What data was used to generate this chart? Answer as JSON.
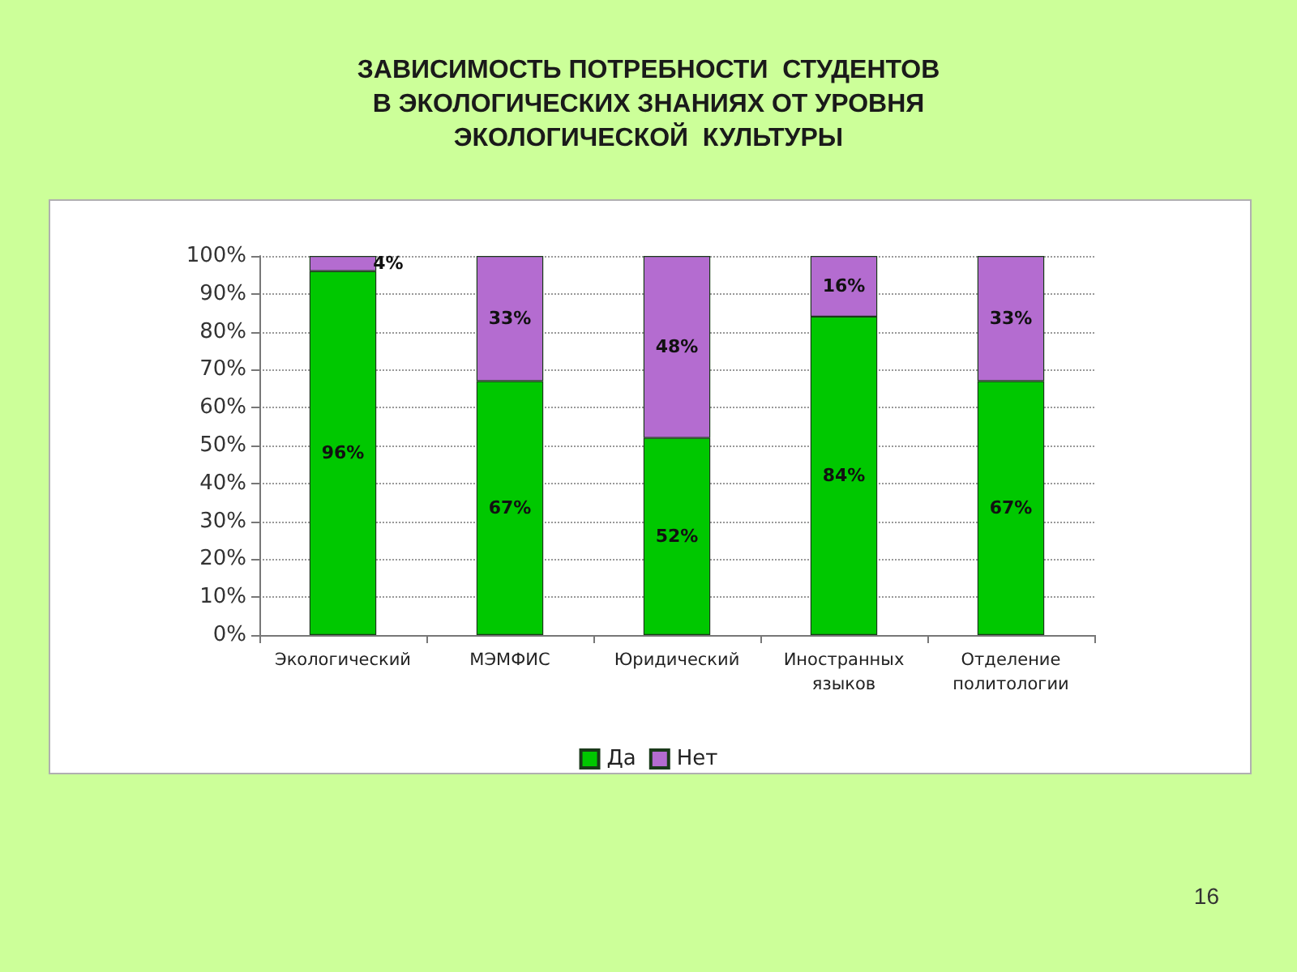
{
  "chart_data": {
    "type": "bar",
    "stacked": true,
    "title": "ЗАВИСИМОСТЬ ПОТРЕБНОСТИ  СТУДЕНТОВ\nВ ЭКОЛОГИЧЕСКИХ ЗНАНИЯХ ОТ УРОВНЯ\nЭКОЛОГИЧЕСКОЙ  КУЛЬТУРЫ",
    "categories": [
      "Экологический",
      "МЭМФИС",
      "Юридический",
      "Иностранных языков",
      "Отделение политологии"
    ],
    "series": [
      {
        "name": "Да",
        "color": "#00c800",
        "values": [
          96,
          67,
          52,
          84,
          67
        ],
        "value_labels": [
          "96%",
          "67%",
          "52%",
          "84%",
          "67%"
        ]
      },
      {
        "name": "Нет",
        "color": "#b46cd0",
        "values": [
          4,
          33,
          48,
          16,
          33
        ],
        "value_labels": [
          "4%",
          "33%",
          "48%",
          "16%",
          "33%"
        ]
      }
    ],
    "ylim": [
      0,
      100
    ],
    "yticks": [
      {
        "value": 0,
        "label": "0%"
      },
      {
        "value": 10,
        "label": "10%"
      },
      {
        "value": 20,
        "label": "20%"
      },
      {
        "value": 30,
        "label": "30%"
      },
      {
        "value": 40,
        "label": "40%"
      },
      {
        "value": 50,
        "label": "50%"
      },
      {
        "value": 60,
        "label": "60%"
      },
      {
        "value": 70,
        "label": "70%"
      },
      {
        "value": 80,
        "label": "80%"
      },
      {
        "value": 90,
        "label": "90%"
      },
      {
        "value": 100,
        "label": "100%"
      }
    ],
    "grid": "y",
    "legend": "bottom",
    "annotations": [
      "16"
    ]
  }
}
